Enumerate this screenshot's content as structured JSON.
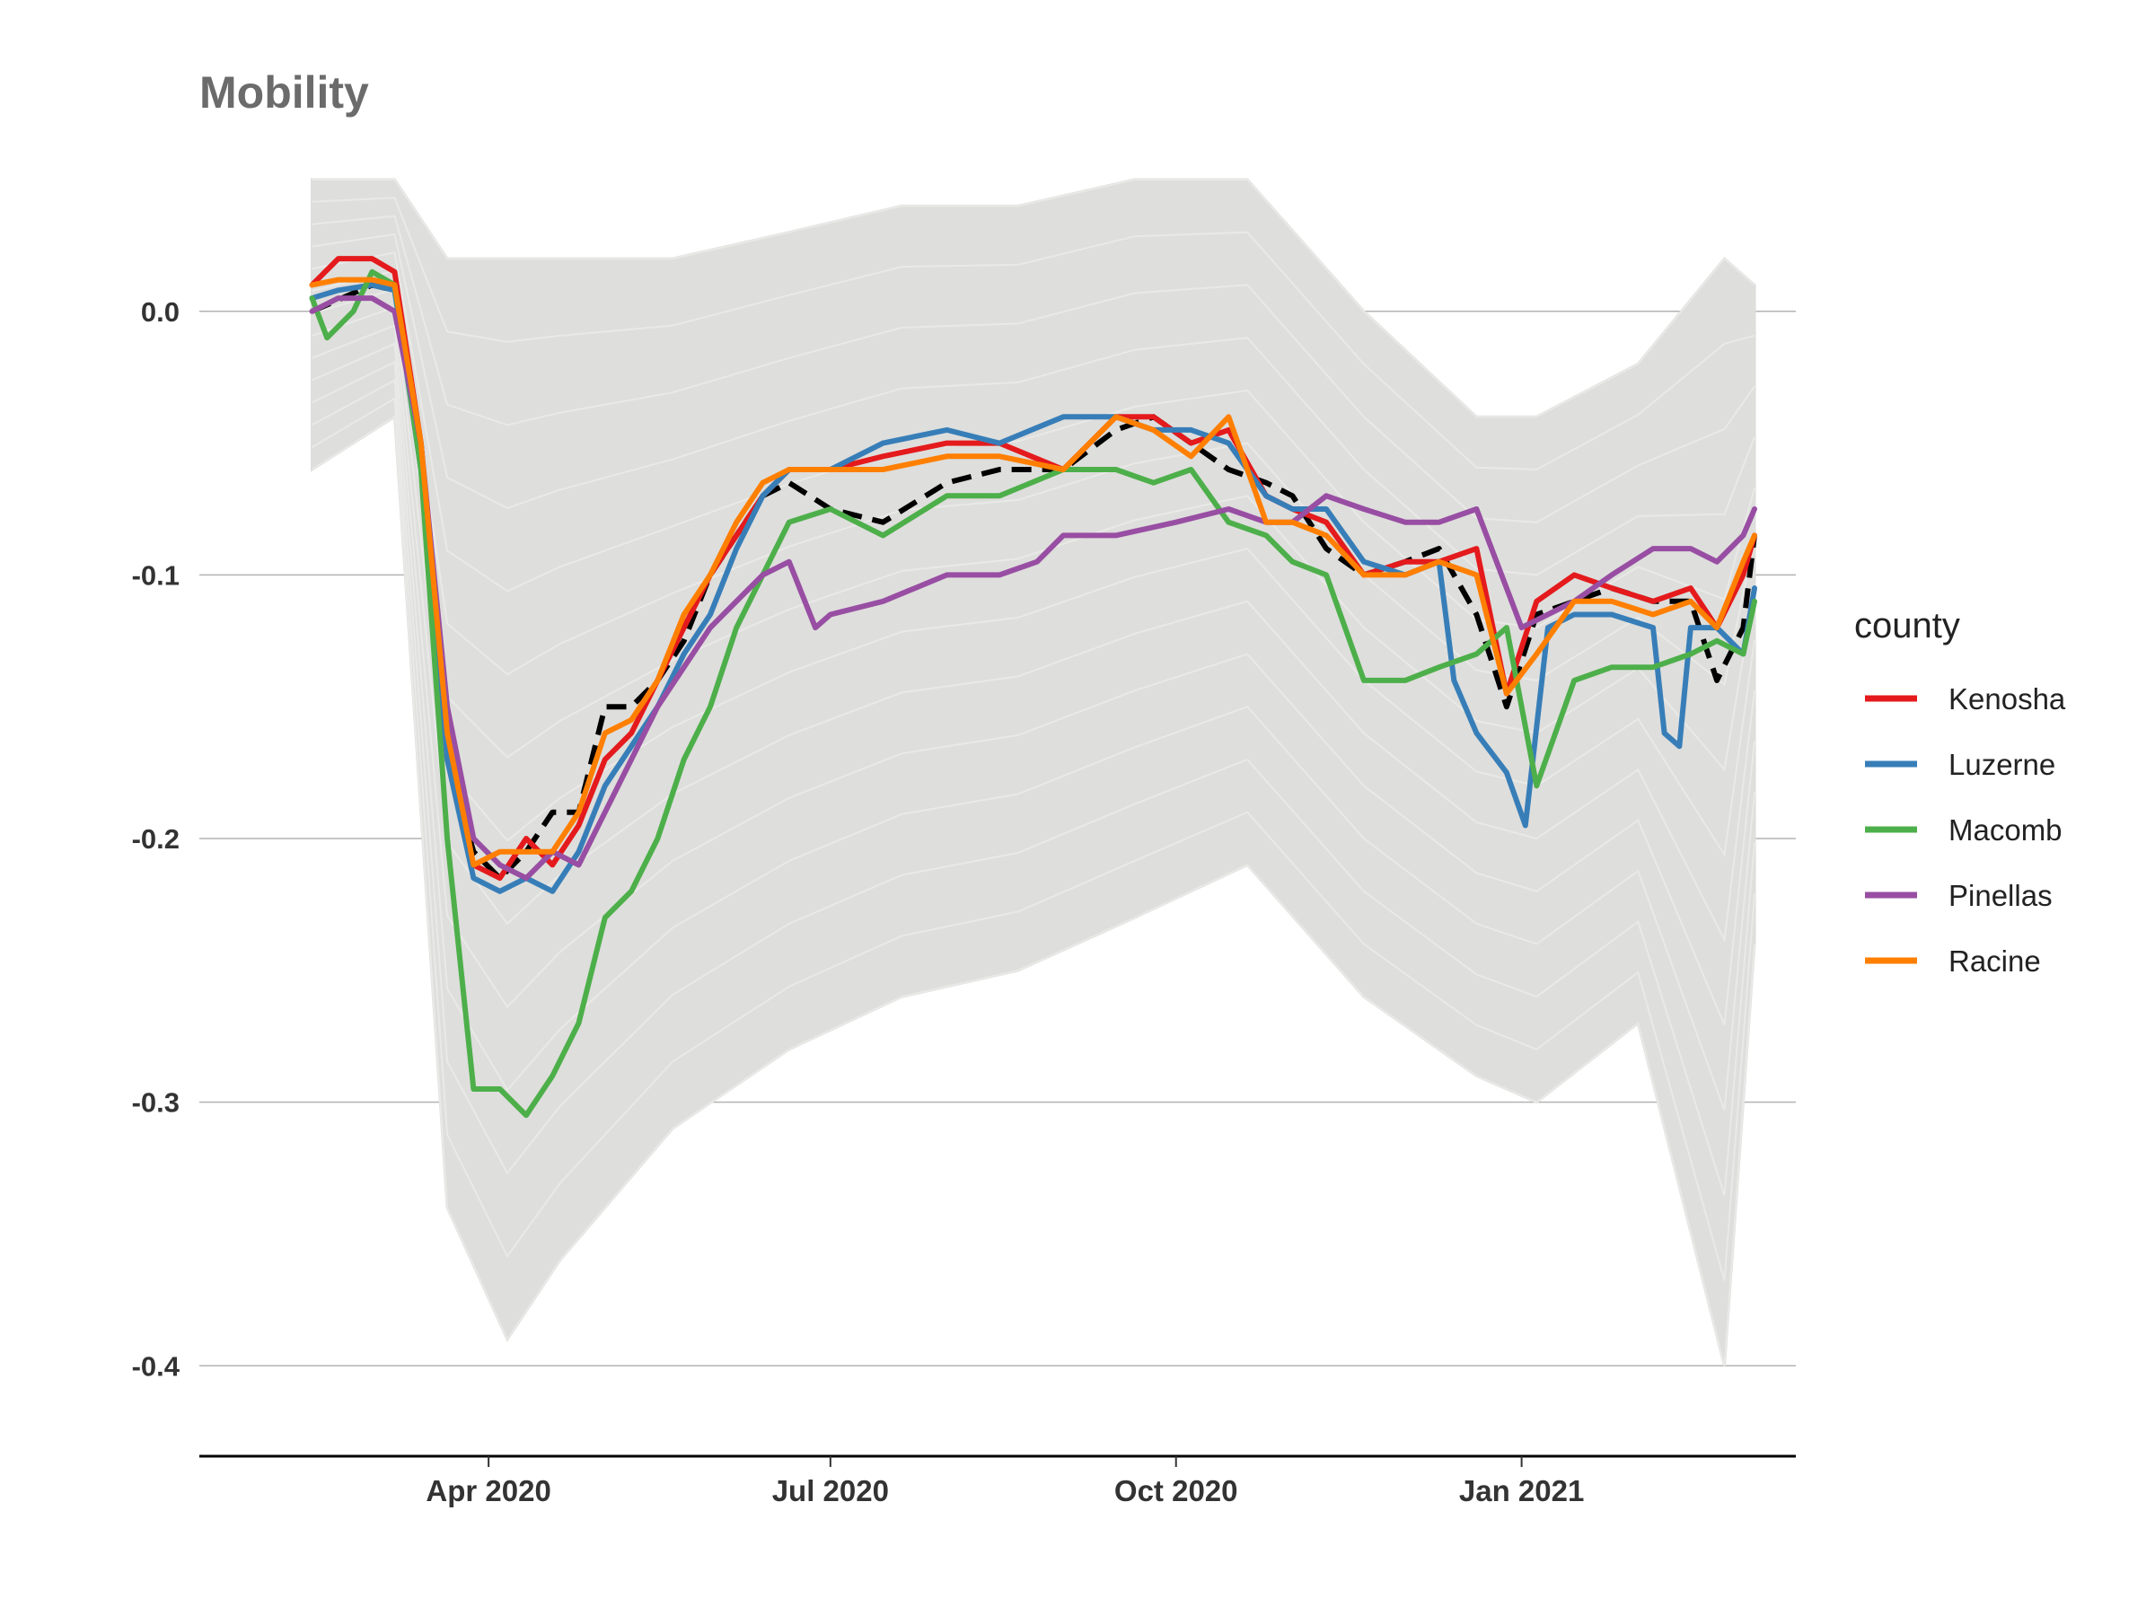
{
  "chart_data": {
    "type": "line",
    "title": "Mobility",
    "xlabel": "",
    "ylabel": "",
    "x_range": [
      "2020-01-15",
      "2021-03-15"
    ],
    "ylim": [
      -0.42,
      0.05
    ],
    "y_ticks": [
      {
        "value": 0.0,
        "label": "0.0"
      },
      {
        "value": -0.1,
        "label": "-0.1"
      },
      {
        "value": -0.2,
        "label": "-0.2"
      },
      {
        "value": -0.3,
        "label": "-0.3"
      },
      {
        "value": -0.4,
        "label": "-0.4"
      }
    ],
    "x_ticks": [
      {
        "value": "2020-04-01",
        "label": "Apr 2020"
      },
      {
        "value": "2020-07-01",
        "label": "Jul 2020"
      },
      {
        "value": "2020-10-01",
        "label": "Oct 2020"
      },
      {
        "value": "2021-01-01",
        "label": "Jan 2021"
      }
    ],
    "grid": "horizontal-major",
    "legend": {
      "title": "county",
      "position": "right"
    },
    "background_band": {
      "color": "#dededc",
      "description_points": [
        {
          "x": "2020-02-14",
          "upper": 0.05,
          "lower": -0.06
        },
        {
          "x": "2020-03-07",
          "upper": 0.05,
          "lower": -0.04
        },
        {
          "x": "2020-03-21",
          "upper": 0.02,
          "lower": -0.34
        },
        {
          "x": "2020-04-06",
          "upper": 0.02,
          "lower": -0.39
        },
        {
          "x": "2020-04-20",
          "upper": 0.02,
          "lower": -0.36
        },
        {
          "x": "2020-05-20",
          "upper": 0.02,
          "lower": -0.31
        },
        {
          "x": "2020-06-20",
          "upper": 0.03,
          "lower": -0.28
        },
        {
          "x": "2020-07-20",
          "upper": 0.04,
          "lower": -0.26
        },
        {
          "x": "2020-08-20",
          "upper": 0.04,
          "lower": -0.25
        },
        {
          "x": "2020-09-20",
          "upper": 0.05,
          "lower": -0.23
        },
        {
          "x": "2020-10-20",
          "upper": 0.05,
          "lower": -0.21
        },
        {
          "x": "2020-11-20",
          "upper": 0.0,
          "lower": -0.26
        },
        {
          "x": "2020-12-20",
          "upper": -0.04,
          "lower": -0.29
        },
        {
          "x": "2021-01-05",
          "upper": -0.04,
          "lower": -0.3
        },
        {
          "x": "2021-02-01",
          "upper": -0.02,
          "lower": -0.27
        },
        {
          "x": "2021-02-24",
          "upper": 0.02,
          "lower": -0.4
        },
        {
          "x": "2021-03-04",
          "upper": 0.01,
          "lower": -0.24
        }
      ]
    },
    "reference_series": {
      "style": "dashed",
      "color": "#000000",
      "x": [
        "2020-02-14",
        "2020-03-01",
        "2020-03-07",
        "2020-03-14",
        "2020-03-21",
        "2020-03-28",
        "2020-04-04",
        "2020-04-11",
        "2020-04-18",
        "2020-04-25",
        "2020-05-02",
        "2020-05-09",
        "2020-05-16",
        "2020-05-23",
        "2020-05-30",
        "2020-06-06",
        "2020-06-13",
        "2020-06-20",
        "2020-07-01",
        "2020-07-15",
        "2020-08-01",
        "2020-08-15",
        "2020-09-01",
        "2020-09-15",
        "2020-09-25",
        "2020-10-05",
        "2020-10-15",
        "2020-10-25",
        "2020-11-01",
        "2020-11-10",
        "2020-11-20",
        "2020-12-01",
        "2020-12-10",
        "2020-12-20",
        "2020-12-28",
        "2021-01-05",
        "2021-01-15",
        "2021-01-25",
        "2021-02-05",
        "2021-02-15",
        "2021-02-22",
        "2021-03-01",
        "2021-03-04"
      ],
      "values": [
        0.0,
        0.01,
        0.008,
        -0.05,
        -0.17,
        -0.205,
        -0.215,
        -0.205,
        -0.19,
        -0.19,
        -0.15,
        -0.15,
        -0.14,
        -0.125,
        -0.1,
        -0.085,
        -0.07,
        -0.065,
        -0.075,
        -0.08,
        -0.065,
        -0.06,
        -0.06,
        -0.045,
        -0.04,
        -0.05,
        -0.06,
        -0.065,
        -0.07,
        -0.09,
        -0.1,
        -0.095,
        -0.09,
        -0.115,
        -0.15,
        -0.115,
        -0.11,
        -0.105,
        -0.11,
        -0.11,
        -0.14,
        -0.12,
        -0.085
      ]
    },
    "series": [
      {
        "name": "Kenosha",
        "color": "#e41a1c",
        "x": [
          "2020-02-14",
          "2020-02-21",
          "2020-03-01",
          "2020-03-07",
          "2020-03-14",
          "2020-03-21",
          "2020-03-28",
          "2020-04-04",
          "2020-04-11",
          "2020-04-18",
          "2020-04-25",
          "2020-05-02",
          "2020-05-09",
          "2020-05-16",
          "2020-05-23",
          "2020-05-30",
          "2020-06-06",
          "2020-06-13",
          "2020-06-20",
          "2020-07-01",
          "2020-07-15",
          "2020-08-01",
          "2020-08-15",
          "2020-09-01",
          "2020-09-15",
          "2020-09-25",
          "2020-10-05",
          "2020-10-15",
          "2020-10-25",
          "2020-11-01",
          "2020-11-10",
          "2020-11-20",
          "2020-12-01",
          "2020-12-10",
          "2020-12-20",
          "2020-12-28",
          "2021-01-05",
          "2021-01-15",
          "2021-01-25",
          "2021-02-05",
          "2021-02-15",
          "2021-02-22",
          "2021-03-01",
          "2021-03-04"
        ],
        "values": [
          0.01,
          0.02,
          0.02,
          0.015,
          -0.05,
          -0.17,
          -0.21,
          -0.215,
          -0.2,
          -0.21,
          -0.195,
          -0.17,
          -0.16,
          -0.14,
          -0.12,
          -0.1,
          -0.085,
          -0.07,
          -0.06,
          -0.06,
          -0.055,
          -0.05,
          -0.05,
          -0.06,
          -0.04,
          -0.04,
          -0.05,
          -0.045,
          -0.07,
          -0.075,
          -0.08,
          -0.1,
          -0.095,
          -0.095,
          -0.09,
          -0.145,
          -0.11,
          -0.1,
          -0.105,
          -0.11,
          -0.105,
          -0.12,
          -0.1,
          -0.085
        ]
      },
      {
        "name": "Luzerne",
        "color": "#377eb8",
        "x": [
          "2020-02-14",
          "2020-02-21",
          "2020-03-01",
          "2020-03-07",
          "2020-03-14",
          "2020-03-21",
          "2020-03-28",
          "2020-04-04",
          "2020-04-11",
          "2020-04-18",
          "2020-04-25",
          "2020-05-02",
          "2020-05-09",
          "2020-05-16",
          "2020-05-23",
          "2020-05-30",
          "2020-06-06",
          "2020-06-13",
          "2020-06-20",
          "2020-07-01",
          "2020-07-15",
          "2020-08-01",
          "2020-08-15",
          "2020-09-01",
          "2020-09-15",
          "2020-09-25",
          "2020-10-05",
          "2020-10-15",
          "2020-10-25",
          "2020-11-01",
          "2020-11-10",
          "2020-11-20",
          "2020-12-01",
          "2020-12-10",
          "2020-12-14",
          "2020-12-20",
          "2020-12-28",
          "2021-01-02",
          "2021-01-08",
          "2021-01-15",
          "2021-01-25",
          "2021-02-05",
          "2021-02-08",
          "2021-02-12",
          "2021-02-15",
          "2021-02-22",
          "2021-03-01",
          "2021-03-04"
        ],
        "values": [
          0.005,
          0.008,
          0.01,
          0.008,
          -0.06,
          -0.17,
          -0.215,
          -0.22,
          -0.215,
          -0.22,
          -0.205,
          -0.18,
          -0.165,
          -0.15,
          -0.13,
          -0.115,
          -0.09,
          -0.07,
          -0.06,
          -0.06,
          -0.05,
          -0.045,
          -0.05,
          -0.04,
          -0.04,
          -0.045,
          -0.045,
          -0.05,
          -0.07,
          -0.075,
          -0.075,
          -0.095,
          -0.1,
          -0.095,
          -0.14,
          -0.16,
          -0.175,
          -0.195,
          -0.12,
          -0.115,
          -0.115,
          -0.12,
          -0.16,
          -0.165,
          -0.12,
          -0.12,
          -0.13,
          -0.105
        ]
      },
      {
        "name": "Macomb",
        "color": "#4daf4a",
        "x": [
          "2020-02-14",
          "2020-02-18",
          "2020-02-25",
          "2020-03-01",
          "2020-03-07",
          "2020-03-14",
          "2020-03-21",
          "2020-03-28",
          "2020-04-04",
          "2020-04-11",
          "2020-04-18",
          "2020-04-25",
          "2020-05-02",
          "2020-05-09",
          "2020-05-16",
          "2020-05-23",
          "2020-05-30",
          "2020-06-06",
          "2020-06-13",
          "2020-06-20",
          "2020-07-01",
          "2020-07-15",
          "2020-08-01",
          "2020-08-15",
          "2020-09-01",
          "2020-09-15",
          "2020-09-25",
          "2020-10-05",
          "2020-10-15",
          "2020-10-25",
          "2020-11-01",
          "2020-11-10",
          "2020-11-20",
          "2020-12-01",
          "2020-12-10",
          "2020-12-20",
          "2020-12-28",
          "2021-01-05",
          "2021-01-15",
          "2021-01-25",
          "2021-02-05",
          "2021-02-15",
          "2021-02-22",
          "2021-03-01",
          "2021-03-04"
        ],
        "values": [
          0.005,
          -0.01,
          0.0,
          0.015,
          0.01,
          -0.06,
          -0.2,
          -0.295,
          -0.295,
          -0.305,
          -0.29,
          -0.27,
          -0.23,
          -0.22,
          -0.2,
          -0.17,
          -0.15,
          -0.12,
          -0.1,
          -0.08,
          -0.075,
          -0.085,
          -0.07,
          -0.07,
          -0.06,
          -0.06,
          -0.065,
          -0.06,
          -0.08,
          -0.085,
          -0.095,
          -0.1,
          -0.14,
          -0.14,
          -0.135,
          -0.13,
          -0.12,
          -0.18,
          -0.14,
          -0.135,
          -0.135,
          -0.13,
          -0.125,
          -0.13,
          -0.11
        ]
      },
      {
        "name": "Pinellas",
        "color": "#984ea3",
        "x": [
          "2020-02-14",
          "2020-02-21",
          "2020-03-01",
          "2020-03-07",
          "2020-03-14",
          "2020-03-21",
          "2020-03-28",
          "2020-04-04",
          "2020-04-11",
          "2020-04-18",
          "2020-04-25",
          "2020-05-02",
          "2020-05-09",
          "2020-05-16",
          "2020-05-23",
          "2020-05-30",
          "2020-06-06",
          "2020-06-13",
          "2020-06-20",
          "2020-06-27",
          "2020-07-01",
          "2020-07-15",
          "2020-08-01",
          "2020-08-15",
          "2020-08-25",
          "2020-09-01",
          "2020-09-15",
          "2020-10-01",
          "2020-10-15",
          "2020-10-25",
          "2020-11-01",
          "2020-11-10",
          "2020-11-20",
          "2020-12-01",
          "2020-12-10",
          "2020-12-20",
          "2021-01-01",
          "2021-01-15",
          "2021-01-25",
          "2021-02-05",
          "2021-02-15",
          "2021-02-22",
          "2021-03-01",
          "2021-03-04"
        ],
        "values": [
          0.0,
          0.005,
          0.005,
          0.0,
          -0.05,
          -0.15,
          -0.2,
          -0.21,
          -0.215,
          -0.205,
          -0.21,
          -0.19,
          -0.17,
          -0.15,
          -0.135,
          -0.12,
          -0.11,
          -0.1,
          -0.095,
          -0.12,
          -0.115,
          -0.11,
          -0.1,
          -0.1,
          -0.095,
          -0.085,
          -0.085,
          -0.08,
          -0.075,
          -0.08,
          -0.08,
          -0.07,
          -0.075,
          -0.08,
          -0.08,
          -0.075,
          -0.12,
          -0.11,
          -0.1,
          -0.09,
          -0.09,
          -0.095,
          -0.085,
          -0.075
        ]
      },
      {
        "name": "Racine",
        "color": "#ff7f00",
        "x": [
          "2020-02-14",
          "2020-02-21",
          "2020-03-01",
          "2020-03-07",
          "2020-03-14",
          "2020-03-21",
          "2020-03-28",
          "2020-04-04",
          "2020-04-11",
          "2020-04-18",
          "2020-04-25",
          "2020-05-02",
          "2020-05-09",
          "2020-05-16",
          "2020-05-23",
          "2020-05-30",
          "2020-06-06",
          "2020-06-13",
          "2020-06-20",
          "2020-07-01",
          "2020-07-15",
          "2020-08-01",
          "2020-08-15",
          "2020-09-01",
          "2020-09-15",
          "2020-09-25",
          "2020-10-05",
          "2020-10-15",
          "2020-10-25",
          "2020-11-01",
          "2020-11-10",
          "2020-11-20",
          "2020-12-01",
          "2020-12-10",
          "2020-12-20",
          "2020-12-28",
          "2021-01-05",
          "2021-01-15",
          "2021-01-25",
          "2021-02-05",
          "2021-02-15",
          "2021-02-22",
          "2021-03-01",
          "2021-03-04"
        ],
        "values": [
          0.01,
          0.012,
          0.012,
          0.01,
          -0.05,
          -0.16,
          -0.21,
          -0.205,
          -0.205,
          -0.205,
          -0.19,
          -0.16,
          -0.155,
          -0.14,
          -0.115,
          -0.1,
          -0.08,
          -0.065,
          -0.06,
          -0.06,
          -0.06,
          -0.055,
          -0.055,
          -0.06,
          -0.04,
          -0.045,
          -0.055,
          -0.04,
          -0.08,
          -0.08,
          -0.085,
          -0.1,
          -0.1,
          -0.095,
          -0.1,
          -0.145,
          -0.13,
          -0.11,
          -0.11,
          -0.115,
          -0.11,
          -0.12,
          -0.095,
          -0.085
        ]
      }
    ]
  }
}
